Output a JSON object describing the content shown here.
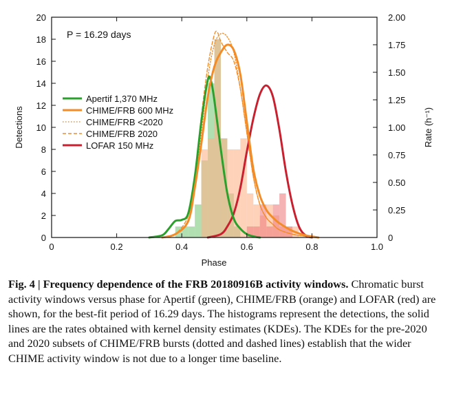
{
  "chart_data": {
    "type": "histogram+line",
    "annotation": "P = 16.29 days",
    "xlabel": "Phase",
    "ylabel_left": "Detections",
    "ylabel_right": "Rate (h⁻¹)",
    "xlim": [
      0,
      1.0
    ],
    "ylim_left": [
      0,
      20
    ],
    "ylim_right": [
      0,
      2.0
    ],
    "x_ticks": [
      "0",
      "0.2",
      "0.4",
      "0.6",
      "0.8",
      "1.0"
    ],
    "y_ticks_left": [
      "0",
      "2",
      "4",
      "6",
      "8",
      "10",
      "12",
      "14",
      "16",
      "18",
      "20"
    ],
    "y_ticks_right": [
      "0",
      "0.25",
      "0.50",
      "0.75",
      "1.00",
      "1.25",
      "1.50",
      "1.75",
      "2.00"
    ],
    "legend": [
      {
        "label": "Apertif 1,370 MHz",
        "color": "#2ca02c",
        "style": "solid"
      },
      {
        "label": "CHIME/FRB 600 MHz",
        "color": "#f28c28",
        "style": "solid"
      },
      {
        "label": "CHIME/FRB <2020",
        "color": "#f28c28",
        "style": "dotted"
      },
      {
        "label": "CHIME/FRB 2020",
        "color": "#f28c28",
        "style": "dashed"
      },
      {
        "label": "LOFAR 150 MHz",
        "color": "#c8202f",
        "style": "solid"
      }
    ],
    "histograms": [
      {
        "name": "Apertif 1,370 MHz",
        "color": "#7fc97f",
        "bin_width": 0.02,
        "x": [
          0.38,
          0.4,
          0.42,
          0.44,
          0.46,
          0.48,
          0.5,
          0.52,
          0.54,
          0.56,
          0.58
        ],
        "values": [
          1,
          1,
          1,
          3,
          7,
          14,
          18,
          9,
          4,
          1,
          0
        ]
      },
      {
        "name": "CHIME/FRB 600 MHz",
        "color": "#fdb38a",
        "bin_width": 0.02,
        "x": [
          0.46,
          0.48,
          0.5,
          0.52,
          0.54,
          0.56,
          0.58,
          0.6,
          0.62,
          0.64,
          0.66,
          0.68,
          0.7,
          0.72,
          0.74
        ],
        "values": [
          8,
          9,
          18,
          9,
          8,
          8,
          9,
          4,
          3,
          2,
          3,
          2,
          1,
          1,
          1
        ]
      },
      {
        "name": "LOFAR 150 MHz",
        "color": "#f08080",
        "bin_width": 0.02,
        "x": [
          0.6,
          0.62,
          0.64,
          0.66,
          0.68,
          0.7,
          0.72
        ],
        "values": [
          1,
          1,
          3,
          1,
          3,
          4,
          1
        ]
      }
    ],
    "series": [
      {
        "name": "Apertif 1,370 MHz",
        "color": "#2ca02c",
        "style": "solid",
        "axis": "right",
        "x": [
          0.3,
          0.34,
          0.36,
          0.38,
          0.4,
          0.42,
          0.44,
          0.46,
          0.48,
          0.49,
          0.5,
          0.52,
          0.54,
          0.56,
          0.58,
          0.6,
          0.62,
          0.64
        ],
        "values": [
          0.0,
          0.02,
          0.08,
          0.15,
          0.16,
          0.22,
          0.55,
          1.05,
          1.43,
          1.42,
          1.25,
          0.8,
          0.4,
          0.17,
          0.08,
          0.03,
          0.01,
          0.0
        ]
      },
      {
        "name": "CHIME/FRB 600 MHz",
        "color": "#f28c28",
        "style": "solid",
        "axis": "right",
        "x": [
          0.34,
          0.38,
          0.42,
          0.44,
          0.46,
          0.48,
          0.5,
          0.52,
          0.54,
          0.56,
          0.58,
          0.6,
          0.62,
          0.64,
          0.66,
          0.68,
          0.7,
          0.74,
          0.78,
          0.82
        ],
        "values": [
          0.0,
          0.03,
          0.15,
          0.45,
          0.85,
          1.28,
          1.55,
          1.68,
          1.75,
          1.7,
          1.48,
          1.05,
          0.62,
          0.38,
          0.25,
          0.18,
          0.13,
          0.06,
          0.02,
          0.0
        ]
      },
      {
        "name": "CHIME/FRB <2020",
        "color": "#f28c28",
        "style": "dotted",
        "axis": "right",
        "x": [
          0.34,
          0.38,
          0.42,
          0.44,
          0.46,
          0.48,
          0.5,
          0.52,
          0.54,
          0.56,
          0.58,
          0.6,
          0.62,
          0.64,
          0.66,
          0.68,
          0.7,
          0.74,
          0.78,
          0.82
        ],
        "values": [
          0.0,
          0.03,
          0.15,
          0.48,
          0.95,
          1.45,
          1.75,
          1.85,
          1.82,
          1.68,
          1.35,
          0.95,
          0.55,
          0.3,
          0.18,
          0.12,
          0.07,
          0.03,
          0.01,
          0.0
        ]
      },
      {
        "name": "CHIME/FRB 2020",
        "color": "#f28c28",
        "style": "dashed",
        "axis": "right",
        "x": [
          0.34,
          0.38,
          0.42,
          0.44,
          0.46,
          0.48,
          0.5,
          0.51,
          0.52,
          0.54,
          0.56,
          0.58,
          0.6,
          0.62,
          0.64,
          0.66,
          0.68,
          0.7,
          0.74,
          0.78,
          0.82
        ],
        "values": [
          0.0,
          0.03,
          0.2,
          0.55,
          1.1,
          1.55,
          1.84,
          1.86,
          1.78,
          1.68,
          1.6,
          1.35,
          0.95,
          0.55,
          0.3,
          0.18,
          0.12,
          0.07,
          0.03,
          0.01,
          0.0
        ]
      },
      {
        "name": "LOFAR 150 MHz",
        "color": "#c8202f",
        "style": "solid",
        "axis": "right",
        "x": [
          0.48,
          0.52,
          0.54,
          0.56,
          0.58,
          0.6,
          0.62,
          0.64,
          0.66,
          0.68,
          0.7,
          0.72,
          0.74,
          0.76,
          0.78,
          0.8
        ],
        "values": [
          0.0,
          0.03,
          0.1,
          0.22,
          0.45,
          0.78,
          1.08,
          1.3,
          1.38,
          1.28,
          0.98,
          0.6,
          0.3,
          0.1,
          0.02,
          0.0
        ]
      }
    ]
  },
  "caption": {
    "title": "Fig. 4 | Frequency dependence of the FRB 20180916B activity windows.",
    "body": "Chromatic burst activity windows versus phase for Apertif (green), CHIME/FRB (orange) and LOFAR (red) are shown, for the best-fit period of 16.29 days. The histograms represent the detections, the solid lines are the rates obtained with kernel density estimates (KDEs). The KDEs for the pre-2020 and 2020 subsets of CHIME/FRB bursts (dotted and dashed lines) establish that the wider CHIME activity window is not due to a longer time baseline."
  }
}
